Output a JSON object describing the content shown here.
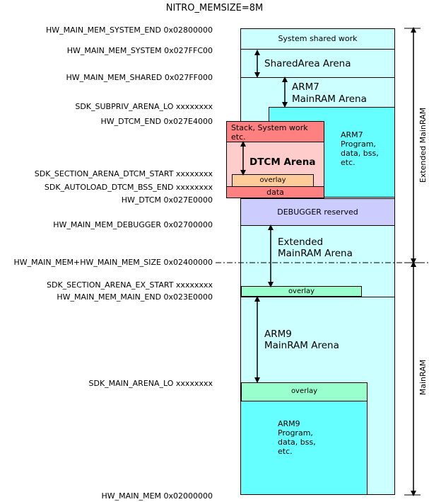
{
  "title": "NITRO_MEMSIZE=8M",
  "labels": {
    "system_end": "HW_MAIN_MEM_SYSTEM_END 0x02800000",
    "system": "HW_MAIN_MEM_SYSTEM 0x027FFC00",
    "shared": "HW_MAIN_MEM_SHARED 0x027FF000",
    "subpriv_lo": "SDK_SUBPRIV_ARENA_LO xxxxxxxx",
    "dtcm_end": "HW_DTCM_END 0x027E4000",
    "dtcm_start": "SDK_SECTION_ARENA_DTCM_START xxxxxxxx",
    "autoload_bss_end": "SDK_AUTOLOAD_DTCM_BSS_END xxxxxxxx",
    "dtcm": "HW_DTCM 0x027E0000",
    "debugger": "HW_MAIN_MEM_DEBUGGER 0x02700000",
    "main_mem_size": "HW_MAIN_MEM+HW_MAIN_MEM_SIZE 0x02400000",
    "ex_start": "SDK_SECTION_ARENA_EX_START xxxxxxxx",
    "main_end": "HW_MAIN_MEM_MAIN_END 0x023E0000",
    "main_arena_lo": "SDK_MAIN_ARENA_LO xxxxxxxx",
    "main_mem": "HW_MAIN_MEM 0x02000000"
  },
  "blocks": {
    "system_shared_work": "System shared work",
    "shared_area_arena": "SharedArea Arena",
    "arm7_mainram_arena_1": "ARM7",
    "arm7_mainram_arena_2": "MainRAM Arena",
    "arm7_program_1": "ARM7",
    "arm7_program_2": "Program,",
    "arm7_program_3": "data, bss,",
    "arm7_program_4": "etc.",
    "stack_system_work_1": "Stack, System work",
    "stack_system_work_2": "etc.",
    "dtcm_arena": "DTCM Arena",
    "dtcm_overlay": "overlay",
    "dtcm_data": "data",
    "debugger_reserved": "DEBUGGER reserved",
    "extended_arena_1": "Extended",
    "extended_arena_2": "MainRAM Arena",
    "ex_overlay": "overlay",
    "arm9_arena_1": "ARM9",
    "arm9_arena_2": "MainRAM Arena",
    "main_overlay": "overlay",
    "arm9_program_1": "ARM9",
    "arm9_program_2": "Program,",
    "arm9_program_3": "data, bss,",
    "arm9_program_4": "etc."
  },
  "side_labels": {
    "extended_mainram": "Extended MainRAM",
    "mainram": "MainRAM"
  },
  "colors": {
    "light_cyan": "#ccffff",
    "cyan": "#66ffff",
    "lavender": "#ccccff",
    "salmon": "#ff8080",
    "pink": "#ffcccc",
    "peach": "#ffcc99",
    "mint": "#99ffcc"
  }
}
